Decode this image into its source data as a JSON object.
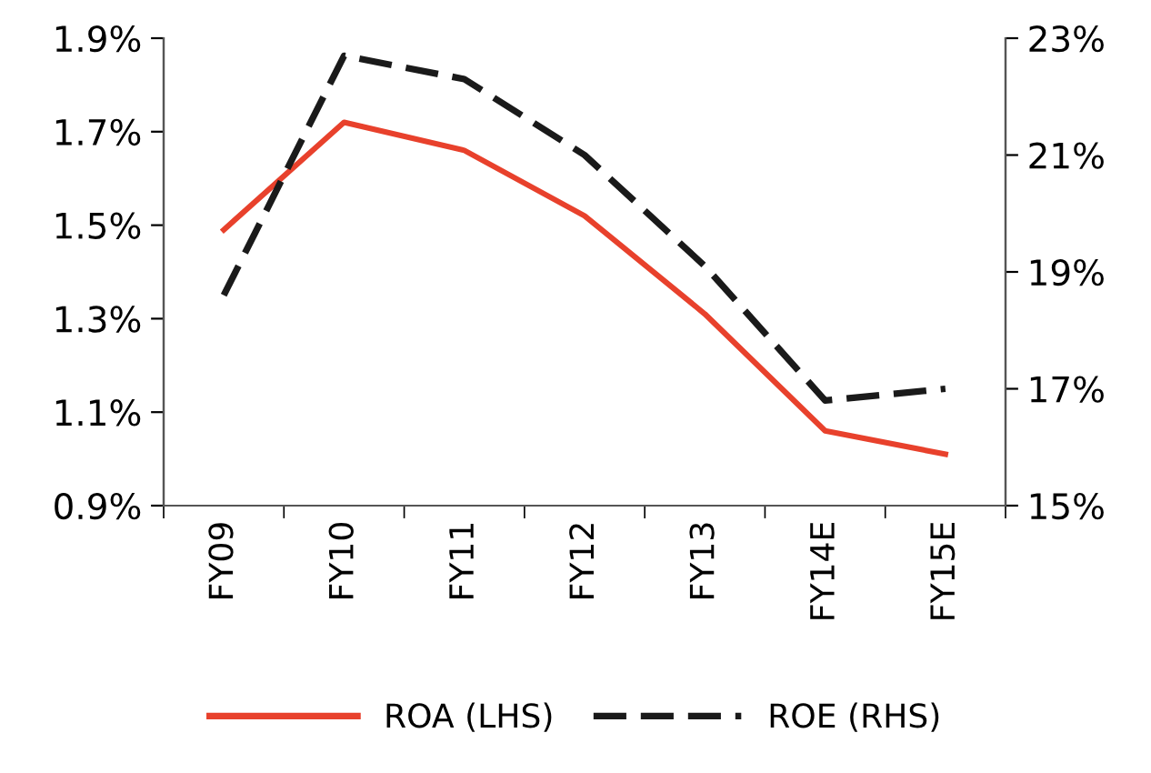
{
  "chart_data": {
    "type": "line",
    "categories": [
      "FY09",
      "FY10",
      "FY11",
      "FY12",
      "FY13",
      "FY14E",
      "FY15E"
    ],
    "series": [
      {
        "name": "ROA (LHS)",
        "color": "#e8412c",
        "values": [
          1.49,
          1.72,
          1.66,
          1.52,
          1.31,
          1.06,
          1.01
        ],
        "line_style": "solid"
      },
      {
        "name": "ROE (RHS)",
        "color": "#1a1a1a",
        "values": [
          18.6,
          22.7,
          22.3,
          21.0,
          19.1,
          16.8,
          17.0
        ],
        "line_style": "dashed",
        "axis": "y2"
      }
    ],
    "ylim": [
      0.9,
      1.9
    ],
    "yticks": [
      {
        "value": 0.9,
        "label": "0.9%"
      },
      {
        "value": 1.1,
        "label": "1.1%"
      },
      {
        "value": 1.3,
        "label": "1.3%"
      },
      {
        "value": 1.5,
        "label": "1.5%"
      },
      {
        "value": 1.7,
        "label": "1.7%"
      },
      {
        "value": 1.9,
        "label": "1.9%"
      }
    ],
    "y2lim": [
      15,
      23
    ],
    "y2ticks": [
      {
        "value": 15,
        "label": "15%"
      },
      {
        "value": 17,
        "label": "17%"
      },
      {
        "value": 19,
        "label": "19%"
      },
      {
        "value": 21,
        "label": "21%"
      },
      {
        "value": 23,
        "label": "23%"
      }
    ],
    "grid": false,
    "legend": "bottom",
    "marker": "none"
  }
}
